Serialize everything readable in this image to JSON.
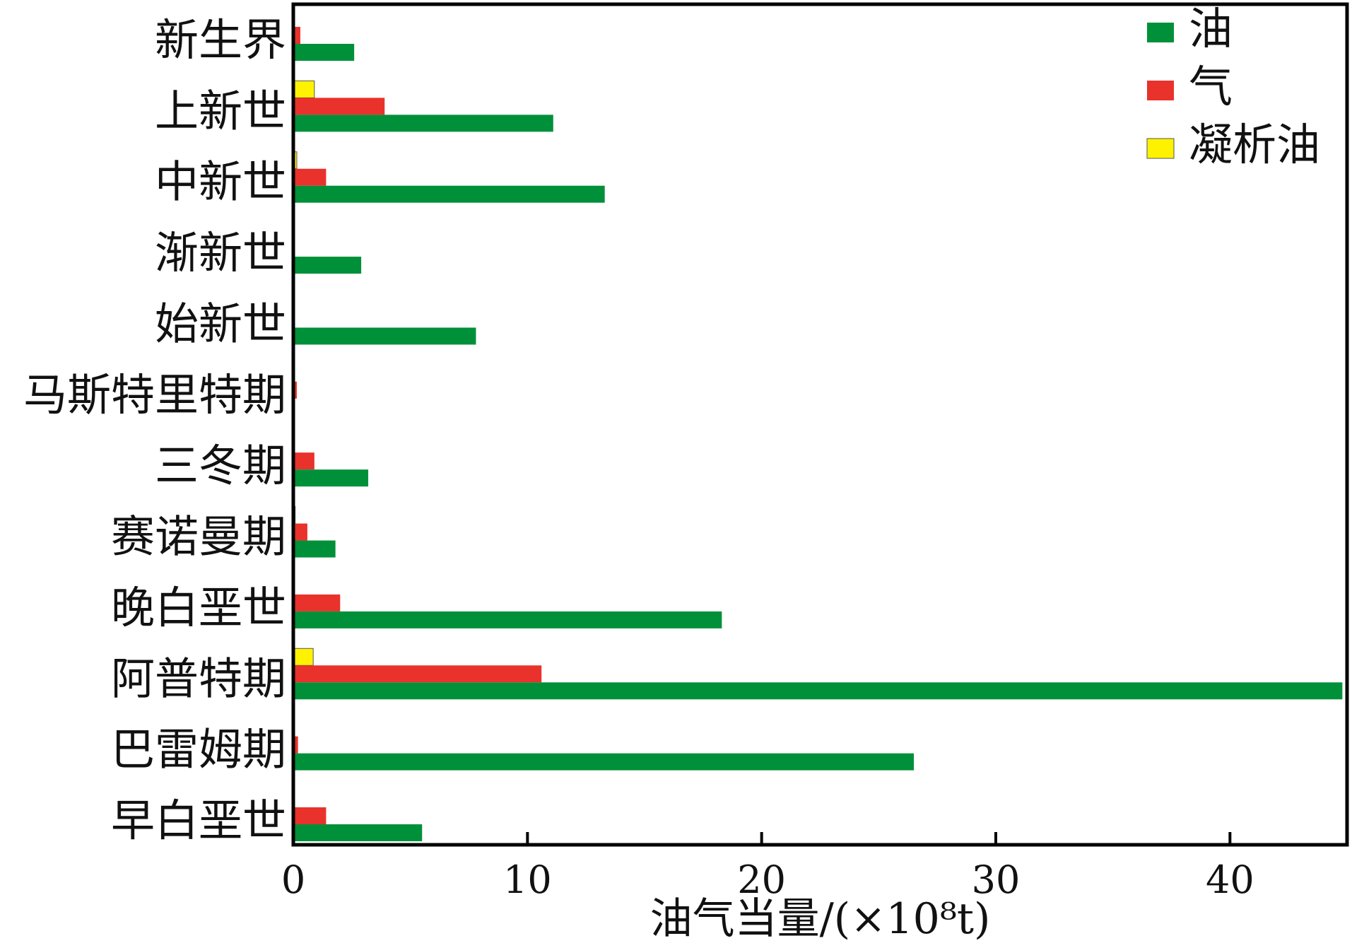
{
  "chart_data": {
    "type": "bar",
    "orientation": "horizontal",
    "title": "",
    "xlabel": "油气当量/(×10⁸t)",
    "ylabel": "",
    "xlim": [
      0,
      45
    ],
    "xticks": [
      0,
      10,
      20,
      30,
      40
    ],
    "grid": false,
    "legend_position": "top-right",
    "categories": [
      "新生界",
      "上新世",
      "中新世",
      "渐新世",
      "始新世",
      "马斯特里特期",
      "三冬期",
      "赛诺曼期",
      "晚白垩世",
      "阿普特期",
      "巴雷姆期",
      "早白垩世"
    ],
    "series": [
      {
        "name": "油",
        "color": "#009039",
        "values": [
          2.6,
          11.1,
          13.3,
          2.9,
          7.8,
          0,
          3.2,
          1.8,
          18.3,
          44.8,
          26.5,
          5.5
        ]
      },
      {
        "name": "气",
        "color": "#e8322b",
        "values": [
          0.3,
          3.9,
          1.4,
          0,
          0,
          0.15,
          0.9,
          0.6,
          2.0,
          10.6,
          0.2,
          1.4
        ]
      },
      {
        "name": "凝析油",
        "color": "#fff200",
        "values": [
          0,
          0.9,
          0.15,
          0,
          0,
          0,
          0,
          0.08,
          0,
          0.85,
          0,
          0
        ]
      }
    ]
  }
}
